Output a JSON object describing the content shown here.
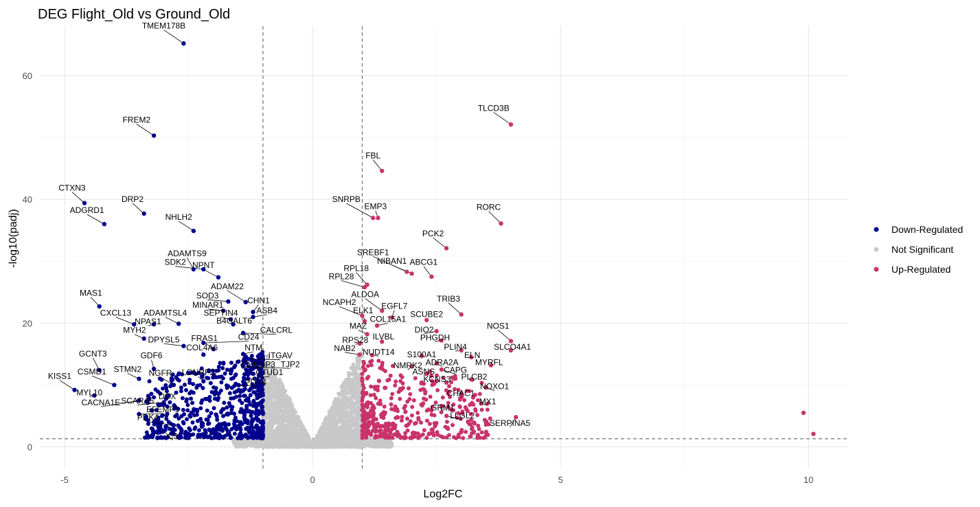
{
  "chart_data": {
    "type": "scatter",
    "title": "DEG Flight_Old vs Ground_Old",
    "xlabel": "Log2FC",
    "ylabel": "-log10(padj)",
    "xlim": [
      -5.5,
      10.8
    ],
    "ylim": [
      -3.5,
      68
    ],
    "x_ticks": [
      -5,
      0,
      5,
      10
    ],
    "y_ticks": [
      0,
      20,
      40,
      60
    ],
    "grid": true,
    "thresholds": {
      "log2fc": [
        -1,
        1
      ],
      "neg_log10_padj": 1.3
    },
    "legend": {
      "position": "right",
      "entries": [
        {
          "name": "Down-Regulated",
          "color": "#00008B"
        },
        {
          "name": "Not Significant",
          "color": "#C8C8C8"
        },
        {
          "name": "Up-Regulated",
          "color": "#C8346A"
        }
      ]
    },
    "labeled_genes": [
      {
        "gene": "TMEM178B",
        "x": -2.6,
        "y": 65.2,
        "group": "Down-Regulated",
        "lx": -3.0,
        "ly": 67.6,
        "lanchor": "middle"
      },
      {
        "gene": "FREM2",
        "x": -3.2,
        "y": 50.3,
        "group": "Down-Regulated",
        "lx": -3.55,
        "ly": 52.4,
        "lanchor": "middle"
      },
      {
        "gene": "CTXN3",
        "x": -4.6,
        "y": 39.4,
        "group": "Down-Regulated",
        "lx": -4.85,
        "ly": 41.4,
        "lanchor": "middle"
      },
      {
        "gene": "ADGRD1",
        "x": -4.2,
        "y": 36.0,
        "group": "Down-Regulated",
        "lx": -4.55,
        "ly": 37.8,
        "lanchor": "middle"
      },
      {
        "gene": "DRP2",
        "x": -3.4,
        "y": 37.7,
        "group": "Down-Regulated",
        "lx": -3.63,
        "ly": 39.6,
        "lanchor": "middle"
      },
      {
        "gene": "NHLH2",
        "x": -2.4,
        "y": 34.9,
        "group": "Down-Regulated",
        "lx": -2.7,
        "ly": 36.7,
        "lanchor": "middle"
      },
      {
        "gene": "ADAMTS9",
        "x": -2.4,
        "y": 28.7,
        "group": "Down-Regulated",
        "lx": -2.53,
        "ly": 30.8,
        "lanchor": "middle"
      },
      {
        "gene": "SDK2",
        "x": -2.2,
        "y": 28.7,
        "group": "Down-Regulated",
        "lx": -2.77,
        "ly": 29.4,
        "lanchor": "middle"
      },
      {
        "gene": "NPNT",
        "x": -1.9,
        "y": 27.4,
        "group": "Down-Regulated",
        "lx": -2.2,
        "ly": 28.9,
        "lanchor": "middle"
      },
      {
        "gene": "ADAM22",
        "x": -1.35,
        "y": 23.4,
        "group": "Down-Regulated",
        "lx": -1.72,
        "ly": 25.5,
        "lanchor": "middle"
      },
      {
        "gene": "SOD3",
        "x": -1.7,
        "y": 23.5,
        "group": "Down-Regulated",
        "lx": -2.12,
        "ly": 24.0,
        "lanchor": "middle"
      },
      {
        "gene": "CHN1",
        "x": -1.2,
        "y": 21.8,
        "group": "Down-Regulated",
        "lx": -1.09,
        "ly": 23.2,
        "lanchor": "middle"
      },
      {
        "gene": "MINAR1",
        "x": -1.8,
        "y": 22.0,
        "group": "Down-Regulated",
        "lx": -2.11,
        "ly": 22.5,
        "lanchor": "middle"
      },
      {
        "gene": "ASB4",
        "x": -1.2,
        "y": 21.0,
        "group": "Down-Regulated",
        "lx": -0.92,
        "ly": 21.6,
        "lanchor": "middle"
      },
      {
        "gene": "SEPTIN4",
        "x": -1.65,
        "y": 20.6,
        "group": "Down-Regulated",
        "lx": -1.85,
        "ly": 21.2,
        "lanchor": "middle"
      },
      {
        "gene": "B4GALT6",
        "x": -1.6,
        "y": 19.8,
        "group": "Down-Regulated",
        "lx": -1.58,
        "ly": 19.9,
        "lanchor": "middle"
      },
      {
        "gene": "MAS1",
        "x": -4.3,
        "y": 22.7,
        "group": "Down-Regulated",
        "lx": -4.47,
        "ly": 24.4,
        "lanchor": "middle"
      },
      {
        "gene": "CXCL13",
        "x": -3.6,
        "y": 19.8,
        "group": "Down-Regulated",
        "lx": -3.97,
        "ly": 21.2,
        "lanchor": "middle"
      },
      {
        "gene": "NPAS1",
        "x": -3.2,
        "y": 19.8,
        "group": "Down-Regulated",
        "lx": -3.32,
        "ly": 19.8,
        "lanchor": "middle"
      },
      {
        "gene": "ADAMTSL4",
        "x": -2.7,
        "y": 19.9,
        "group": "Down-Regulated",
        "lx": -2.97,
        "ly": 21.2,
        "lanchor": "middle"
      },
      {
        "gene": "MYH2",
        "x": -3.4,
        "y": 17.5,
        "group": "Down-Regulated",
        "lx": -3.59,
        "ly": 18.4,
        "lanchor": "middle"
      },
      {
        "gene": "CALCRL",
        "x": -1.4,
        "y": 18.4,
        "group": "Down-Regulated",
        "lx": -0.73,
        "ly": 18.4,
        "lanchor": "middle"
      },
      {
        "gene": "DPYSL5",
        "x": -2.6,
        "y": 16.3,
        "group": "Down-Regulated",
        "lx": -3.0,
        "ly": 16.9,
        "lanchor": "middle"
      },
      {
        "gene": "FRAS1",
        "x": -2.0,
        "y": 15.8,
        "group": "Down-Regulated",
        "lx": -2.18,
        "ly": 17.1,
        "lanchor": "middle"
      },
      {
        "gene": "CD24",
        "x": -2.2,
        "y": 16.8,
        "group": "Down-Regulated",
        "lx": -1.29,
        "ly": 17.3,
        "lanchor": "middle"
      },
      {
        "gene": "COL4A6",
        "x": -2.2,
        "y": 14.9,
        "group": "Down-Regulated",
        "lx": -2.23,
        "ly": 15.6,
        "lanchor": "middle"
      },
      {
        "gene": "NTM",
        "x": -1.4,
        "y": 15.0,
        "group": "Down-Regulated",
        "lx": -1.19,
        "ly": 15.6,
        "lanchor": "middle"
      },
      {
        "gene": "ITGAV",
        "x": -1.3,
        "y": 14.2,
        "group": "Down-Regulated",
        "lx": -0.65,
        "ly": 14.3,
        "lanchor": "middle"
      },
      {
        "gene": "GCNT3",
        "x": -4.3,
        "y": 12.4,
        "group": "Down-Regulated",
        "lx": -4.43,
        "ly": 14.6,
        "lanchor": "middle"
      },
      {
        "gene": "GDF6",
        "x": -3.2,
        "y": 12.6,
        "group": "Down-Regulated",
        "lx": -3.25,
        "ly": 14.3,
        "lanchor": "middle"
      },
      {
        "gene": "TJP2",
        "x": -1.2,
        "y": 12.9,
        "group": "Down-Regulated",
        "lx": -0.45,
        "ly": 12.9,
        "lanchor": "middle"
      },
      {
        "gene": "CSRNP3",
        "x": -1.4,
        "y": 13.0,
        "group": "Down-Regulated",
        "lx": -1.09,
        "ly": 12.9,
        "lanchor": "middle"
      },
      {
        "gene": "CSMD1",
        "x": -4.0,
        "y": 10.0,
        "group": "Down-Regulated",
        "lx": -4.45,
        "ly": 11.7,
        "lanchor": "middle"
      },
      {
        "gene": "STMN2",
        "x": -3.5,
        "y": 11.0,
        "group": "Down-Regulated",
        "lx": -3.73,
        "ly": 12.1,
        "lanchor": "middle"
      },
      {
        "gene": "CTUD1",
        "x": -1.3,
        "y": 11.0,
        "group": "Down-Regulated",
        "lx": -0.87,
        "ly": 11.6,
        "lanchor": "middle"
      },
      {
        "gene": "LONRF2",
        "x": -2.2,
        "y": 10.6,
        "group": "Down-Regulated",
        "lx": -2.31,
        "ly": 11.6,
        "lanchor": "middle"
      },
      {
        "gene": "NGFR",
        "x": -2.8,
        "y": 10.0,
        "group": "Down-Regulated",
        "lx": -3.07,
        "ly": 11.5,
        "lanchor": "middle"
      },
      {
        "gene": "PDK4",
        "x": -1.5,
        "y": 10.0,
        "group": "Down-Regulated",
        "lx": -1.15,
        "ly": 10.0,
        "lanchor": "middle"
      },
      {
        "gene": "KISS1",
        "x": -4.8,
        "y": 9.2,
        "group": "Down-Regulated",
        "lx": -5.1,
        "ly": 11.0,
        "lanchor": "middle"
      },
      {
        "gene": "MYL10",
        "x": -4.4,
        "y": 8.3,
        "group": "Down-Regulated",
        "lx": -4.5,
        "ly": 8.3,
        "lanchor": "middle"
      },
      {
        "gene": "DCX",
        "x": -2.9,
        "y": 8.3,
        "group": "Down-Regulated",
        "lx": -2.93,
        "ly": 7.7,
        "lanchor": "middle"
      },
      {
        "gene": "CACNA1E",
        "x": -3.5,
        "y": 7.5,
        "group": "Down-Regulated",
        "lx": -4.27,
        "ly": 6.7,
        "lanchor": "middle"
      },
      {
        "gene": "SCARA5",
        "x": -3.0,
        "y": 7.2,
        "group": "Down-Regulated",
        "lx": -3.53,
        "ly": 7.0,
        "lanchor": "middle"
      },
      {
        "gene": "EFEMP1",
        "x": -3.5,
        "y": 5.3,
        "group": "Down-Regulated",
        "lx": -3.02,
        "ly": 5.6,
        "lanchor": "middle"
      },
      {
        "gene": "PDK4",
        "x": -2.8,
        "y": 3.5,
        "group": "Down-Regulated",
        "lx": -3.32,
        "ly": 4.3,
        "lanchor": "middle"
      },
      {
        "gene": "C3",
        "x": -3.0,
        "y": 2.6,
        "group": "Down-Regulated",
        "lx": -2.82,
        "ly": 1.3,
        "lanchor": "middle"
      },
      {
        "gene": "TLCD3B",
        "x": 4.0,
        "y": 52.1,
        "group": "Up-Regulated",
        "lx": 3.65,
        "ly": 54.3,
        "lanchor": "middle"
      },
      {
        "gene": "FBL",
        "x": 1.4,
        "y": 44.6,
        "group": "Up-Regulated",
        "lx": 1.22,
        "ly": 46.6,
        "lanchor": "middle"
      },
      {
        "gene": "SNRPB",
        "x": 1.22,
        "y": 37.0,
        "group": "Up-Regulated",
        "lx": 0.68,
        "ly": 39.6,
        "lanchor": "middle"
      },
      {
        "gene": "EMP3",
        "x": 1.32,
        "y": 37.0,
        "group": "Up-Regulated",
        "lx": 1.27,
        "ly": 38.4,
        "lanchor": "middle"
      },
      {
        "gene": "RORC",
        "x": 3.8,
        "y": 36.1,
        "group": "Up-Regulated",
        "lx": 3.55,
        "ly": 38.3,
        "lanchor": "middle"
      },
      {
        "gene": "PCK2",
        "x": 2.7,
        "y": 32.1,
        "group": "Up-Regulated",
        "lx": 2.43,
        "ly": 34.0,
        "lanchor": "middle"
      },
      {
        "gene": "SREBF1",
        "x": 1.9,
        "y": 28.3,
        "group": "Up-Regulated",
        "lx": 1.22,
        "ly": 31.0,
        "lanchor": "middle"
      },
      {
        "gene": "NIBAN1",
        "x": 2.0,
        "y": 28.0,
        "group": "Up-Regulated",
        "lx": 1.6,
        "ly": 29.6,
        "lanchor": "middle"
      },
      {
        "gene": "ABCG1",
        "x": 2.4,
        "y": 27.5,
        "group": "Up-Regulated",
        "lx": 2.24,
        "ly": 29.4,
        "lanchor": "middle"
      },
      {
        "gene": "RPL18",
        "x": 1.1,
        "y": 26.2,
        "group": "Up-Regulated",
        "lx": 0.88,
        "ly": 28.4,
        "lanchor": "middle"
      },
      {
        "gene": "RPL28",
        "x": 1.05,
        "y": 25.8,
        "group": "Up-Regulated",
        "lx": 0.58,
        "ly": 27.1,
        "lanchor": "middle"
      },
      {
        "gene": "ALDOA",
        "x": 1.4,
        "y": 22.0,
        "group": "Up-Regulated",
        "lx": 1.06,
        "ly": 24.2,
        "lanchor": "middle"
      },
      {
        "gene": "TRIB3",
        "x": 3.0,
        "y": 21.4,
        "group": "Up-Regulated",
        "lx": 2.74,
        "ly": 23.5,
        "lanchor": "middle"
      },
      {
        "gene": "NCAPH2",
        "x": 1.0,
        "y": 21.2,
        "group": "Up-Regulated",
        "lx": 0.54,
        "ly": 22.9,
        "lanchor": "middle"
      },
      {
        "gene": "EGFL7",
        "x": 1.6,
        "y": 20.9,
        "group": "Up-Regulated",
        "lx": 1.65,
        "ly": 22.3,
        "lanchor": "middle"
      },
      {
        "gene": "ELK1",
        "x": 1.05,
        "y": 20.3,
        "group": "Up-Regulated",
        "lx": 1.02,
        "ly": 21.6,
        "lanchor": "middle"
      },
      {
        "gene": "SCUBE2",
        "x": 2.3,
        "y": 20.5,
        "group": "Up-Regulated",
        "lx": 2.3,
        "ly": 21.0,
        "lanchor": "middle"
      },
      {
        "gene": "COL15A1",
        "x": 1.3,
        "y": 19.6,
        "group": "Up-Regulated",
        "lx": 1.52,
        "ly": 20.2,
        "lanchor": "middle"
      },
      {
        "gene": "NOS1",
        "x": 4.0,
        "y": 17.1,
        "group": "Up-Regulated",
        "lx": 3.74,
        "ly": 19.1,
        "lanchor": "middle"
      },
      {
        "gene": "MAZ",
        "x": 1.1,
        "y": 18.2,
        "group": "Up-Regulated",
        "lx": 0.92,
        "ly": 19.1,
        "lanchor": "middle"
      },
      {
        "gene": "DIO2",
        "x": 2.5,
        "y": 18.7,
        "group": "Up-Regulated",
        "lx": 2.25,
        "ly": 18.5,
        "lanchor": "middle"
      },
      {
        "gene": "ILVBL",
        "x": 1.4,
        "y": 17.0,
        "group": "Up-Regulated",
        "lx": 1.43,
        "ly": 17.4,
        "lanchor": "middle"
      },
      {
        "gene": "PHGDH",
        "x": 2.6,
        "y": 17.2,
        "group": "Up-Regulated",
        "lx": 2.47,
        "ly": 17.2,
        "lanchor": "middle"
      },
      {
        "gene": "RPS28",
        "x": 0.95,
        "y": 16.7,
        "group": "Up-Regulated",
        "lx": 0.86,
        "ly": 16.8,
        "lanchor": "middle"
      },
      {
        "gene": "PLIN4",
        "x": 3.0,
        "y": 15.6,
        "group": "Up-Regulated",
        "lx": 2.88,
        "ly": 15.7,
        "lanchor": "middle"
      },
      {
        "gene": "SLCO4A1",
        "x": 4.0,
        "y": 15.6,
        "group": "Up-Regulated",
        "lx": 4.03,
        "ly": 15.7,
        "lanchor": "middle"
      },
      {
        "gene": "NAB2",
        "x": 0.95,
        "y": 14.9,
        "group": "Up-Regulated",
        "lx": 0.65,
        "ly": 15.5,
        "lanchor": "middle"
      },
      {
        "gene": "NUDT14",
        "x": 1.2,
        "y": 14.8,
        "group": "Up-Regulated",
        "lx": 1.33,
        "ly": 14.9,
        "lanchor": "middle"
      },
      {
        "gene": "S100A1",
        "x": 2.2,
        "y": 14.7,
        "group": "Up-Regulated",
        "lx": 2.2,
        "ly": 14.5,
        "lanchor": "middle"
      },
      {
        "gene": "ELN",
        "x": 3.2,
        "y": 14.5,
        "group": "Up-Regulated",
        "lx": 3.22,
        "ly": 14.4,
        "lanchor": "middle"
      },
      {
        "gene": "ADRA2A",
        "x": 2.5,
        "y": 13.5,
        "group": "Up-Regulated",
        "lx": 2.61,
        "ly": 13.2,
        "lanchor": "middle"
      },
      {
        "gene": "MYRFL",
        "x": 3.6,
        "y": 13.2,
        "group": "Up-Regulated",
        "lx": 3.56,
        "ly": 13.2,
        "lanchor": "middle"
      },
      {
        "gene": "NMRK2",
        "x": 2.0,
        "y": 13.0,
        "group": "Up-Regulated",
        "lx": 1.92,
        "ly": 12.7,
        "lanchor": "middle"
      },
      {
        "gene": "CAPG",
        "x": 2.6,
        "y": 12.5,
        "group": "Up-Regulated",
        "lx": 2.88,
        "ly": 12.0,
        "lanchor": "middle"
      },
      {
        "gene": "ASNS",
        "x": 2.3,
        "y": 11.8,
        "group": "Up-Regulated",
        "lx": 2.24,
        "ly": 11.7,
        "lanchor": "middle"
      },
      {
        "gene": "PLCB2",
        "x": 3.2,
        "y": 10.9,
        "group": "Up-Regulated",
        "lx": 3.26,
        "ly": 10.9,
        "lanchor": "middle"
      },
      {
        "gene": "KCNS3",
        "x": 2.5,
        "y": 10.6,
        "group": "Up-Regulated",
        "lx": 2.51,
        "ly": 10.5,
        "lanchor": "middle"
      },
      {
        "gene": "NOXO1",
        "x": 3.5,
        "y": 9.6,
        "group": "Up-Regulated",
        "lx": 3.67,
        "ly": 9.3,
        "lanchor": "middle"
      },
      {
        "gene": "CHAC1",
        "x": 3.0,
        "y": 8.6,
        "group": "Up-Regulated",
        "lx": 2.99,
        "ly": 8.2,
        "lanchor": "middle"
      },
      {
        "gene": "MX1",
        "x": 3.4,
        "y": 7.0,
        "group": "Up-Regulated",
        "lx": 3.53,
        "ly": 6.9,
        "lanchor": "middle"
      },
      {
        "gene": "GRM1",
        "x": 2.6,
        "y": 6.6,
        "group": "Up-Regulated",
        "lx": 2.62,
        "ly": 5.9,
        "lanchor": "middle"
      },
      {
        "gene": "LLGL2",
        "x": 2.7,
        "y": 5.0,
        "group": "Up-Regulated",
        "lx": 3.02,
        "ly": 4.6,
        "lanchor": "middle"
      },
      {
        "gene": "SERPINA5",
        "x": 4.1,
        "y": 4.8,
        "group": "Up-Regulated",
        "lx": 3.98,
        "ly": 3.4,
        "lanchor": "middle"
      },
      {
        "gene": "",
        "x": 9.9,
        "y": 5.5,
        "group": "Up-Regulated",
        "lx": 9.9,
        "ly": 5.5,
        "lanchor": "middle"
      },
      {
        "gene": "",
        "x": 10.1,
        "y": 2.1,
        "group": "Up-Regulated",
        "lx": 10.1,
        "ly": 2.1,
        "lanchor": "middle"
      }
    ]
  }
}
